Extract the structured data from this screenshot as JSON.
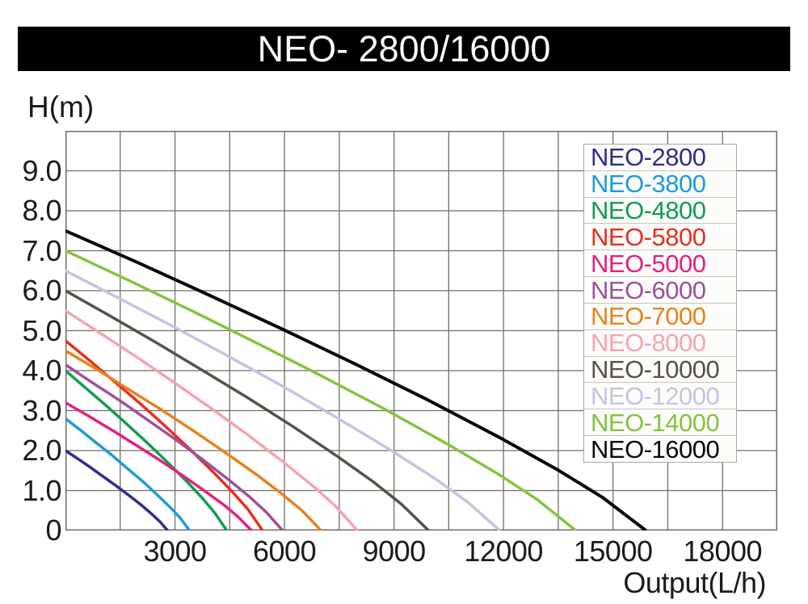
{
  "title": "NEO- 2800/16000",
  "y_axis_title": "H(m)",
  "x_axis_title": "Output(L/h)",
  "colors": {
    "title_bar_bg": "#000000",
    "title_text": "#ffffff",
    "grid": "#6f6f66",
    "tick_text": "#1b1b1b",
    "legend_bg": "#fcfcfa",
    "legend_border": "#a9a9a1"
  },
  "legend": {
    "position": "upper right",
    "items": [
      "NEO-2800",
      "NEO-3800",
      "NEO-4800",
      "NEO-5800",
      "NEO-5000",
      "NEO-6000",
      "NEO-7000",
      "NEO-8000",
      "NEO-10000",
      "NEO-12000",
      "NEO-14000",
      "NEO-16000"
    ]
  },
  "chart_data": {
    "type": "line",
    "title": "NEO- 2800/16000",
    "xlabel": "Output(L/h)",
    "ylabel": "H(m)",
    "grid": true,
    "legend_position": "upper right",
    "x_axis": {
      "min": 0,
      "max": 19500,
      "grid_step": 1500,
      "tick_step": 3000,
      "tick_values": [
        3000,
        6000,
        9000,
        12000,
        15000,
        18000
      ],
      "tick_labels": [
        "3000",
        "6000",
        "9000",
        "12000",
        "15000",
        "18000"
      ]
    },
    "y_axis": {
      "min": 0,
      "max": 10,
      "grid_step": 1,
      "tick_values": [
        0,
        1,
        2,
        3,
        4,
        5,
        6,
        7,
        8,
        9
      ],
      "tick_labels": [
        "0",
        "1.0",
        "2.0",
        "3.0",
        "4.0",
        "5.0",
        "6.0",
        "7.0",
        "8.0",
        "9.0"
      ]
    },
    "series": [
      {
        "name": "NEO-2800",
        "color": "#2f2f8c",
        "max_head_m": 2.0,
        "max_flow_lh": 2800,
        "points": [
          [
            0,
            2.0
          ],
          [
            350,
            1.79
          ],
          [
            700,
            1.57
          ],
          [
            1050,
            1.34
          ],
          [
            1400,
            1.11
          ],
          [
            1750,
            0.87
          ],
          [
            2100,
            0.62
          ],
          [
            2380,
            0.4
          ],
          [
            2590,
            0.22
          ],
          [
            2800,
            0
          ]
        ]
      },
      {
        "name": "NEO-3800",
        "color": "#219bd8",
        "max_head_m": 2.8,
        "max_flow_lh": 3400,
        "points": [
          [
            0,
            2.8
          ],
          [
            430,
            2.5
          ],
          [
            850,
            2.19
          ],
          [
            1280,
            1.88
          ],
          [
            1700,
            1.55
          ],
          [
            2130,
            1.22
          ],
          [
            2550,
            0.86
          ],
          [
            2890,
            0.56
          ],
          [
            3150,
            0.31
          ],
          [
            3400,
            0
          ]
        ]
      },
      {
        "name": "NEO-4800",
        "color": "#119e4f",
        "max_head_m": 4.0,
        "max_flow_lh": 4420,
        "points": [
          [
            0,
            4.0
          ],
          [
            550,
            3.57
          ],
          [
            1110,
            3.13
          ],
          [
            1660,
            2.68
          ],
          [
            2210,
            2.22
          ],
          [
            2760,
            1.74
          ],
          [
            3320,
            1.23
          ],
          [
            3760,
            0.8
          ],
          [
            4090,
            0.44
          ],
          [
            4420,
            0
          ]
        ]
      },
      {
        "name": "NEO-5800",
        "color": "#e6301f",
        "max_head_m": 4.75,
        "max_flow_lh": 5400,
        "points": [
          [
            0,
            4.75
          ],
          [
            680,
            4.24
          ],
          [
            1350,
            3.72
          ],
          [
            2030,
            3.19
          ],
          [
            2700,
            2.64
          ],
          [
            3380,
            2.06
          ],
          [
            4050,
            1.46
          ],
          [
            4590,
            0.95
          ],
          [
            5000,
            0.53
          ],
          [
            5400,
            0
          ]
        ]
      },
      {
        "name": "NEO-5000",
        "color": "#e4217e",
        "max_head_m": 3.2,
        "max_flow_lh": 5100,
        "points": [
          [
            0,
            3.2
          ],
          [
            640,
            2.86
          ],
          [
            1280,
            2.51
          ],
          [
            1910,
            2.15
          ],
          [
            2550,
            1.78
          ],
          [
            3190,
            1.39
          ],
          [
            3830,
            0.98
          ],
          [
            4340,
            0.64
          ],
          [
            4720,
            0.35
          ],
          [
            5100,
            0
          ]
        ]
      },
      {
        "name": "NEO-6000",
        "color": "#9e519a",
        "max_head_m": 4.15,
        "max_flow_lh": 5950,
        "points": [
          [
            0,
            4.15
          ],
          [
            740,
            3.7
          ],
          [
            1490,
            3.25
          ],
          [
            2230,
            2.78
          ],
          [
            2980,
            2.3
          ],
          [
            3720,
            1.8
          ],
          [
            4460,
            1.28
          ],
          [
            5060,
            0.83
          ],
          [
            5500,
            0.46
          ],
          [
            5950,
            0
          ]
        ]
      },
      {
        "name": "NEO-7000",
        "color": "#e8821e",
        "max_head_m": 4.5,
        "max_flow_lh": 7000,
        "points": [
          [
            0,
            4.5
          ],
          [
            880,
            4.02
          ],
          [
            1750,
            3.52
          ],
          [
            2630,
            3.02
          ],
          [
            3500,
            2.5
          ],
          [
            4380,
            1.95
          ],
          [
            5250,
            1.39
          ],
          [
            5950,
            0.9
          ],
          [
            6480,
            0.5
          ],
          [
            7000,
            0
          ]
        ]
      },
      {
        "name": "NEO-8000",
        "color": "#f5a4ad",
        "max_head_m": 5.5,
        "max_flow_lh": 8000,
        "points": [
          [
            0,
            5.5
          ],
          [
            1000,
            4.91
          ],
          [
            2000,
            4.31
          ],
          [
            3000,
            3.69
          ],
          [
            4000,
            3.05
          ],
          [
            5000,
            2.39
          ],
          [
            6000,
            1.69
          ],
          [
            6800,
            1.1
          ],
          [
            7400,
            0.61
          ],
          [
            8000,
            0
          ]
        ]
      },
      {
        "name": "NEO-10000",
        "color": "#595049",
        "max_head_m": 6.0,
        "max_flow_lh": 9950,
        "points": [
          [
            0,
            6.0
          ],
          [
            1240,
            5.36
          ],
          [
            2490,
            4.7
          ],
          [
            3730,
            4.02
          ],
          [
            4980,
            3.33
          ],
          [
            6220,
            2.61
          ],
          [
            7460,
            1.85
          ],
          [
            8460,
            1.2
          ],
          [
            9200,
            0.66
          ],
          [
            9950,
            0
          ]
        ]
      },
      {
        "name": "NEO-12000",
        "color": "#c5c4e2",
        "max_head_m": 6.5,
        "max_flow_lh": 11900,
        "points": [
          [
            0,
            6.5
          ],
          [
            1490,
            5.8
          ],
          [
            2980,
            5.09
          ],
          [
            4460,
            4.36
          ],
          [
            5950,
            3.61
          ],
          [
            7440,
            2.82
          ],
          [
            8930,
            2.0
          ],
          [
            10120,
            1.3
          ],
          [
            11010,
            0.72
          ],
          [
            11900,
            0
          ]
        ]
      },
      {
        "name": "NEO-14000",
        "color": "#85c43f",
        "max_head_m": 7.0,
        "max_flow_lh": 13980,
        "points": [
          [
            0,
            7.0
          ],
          [
            1750,
            6.25
          ],
          [
            3500,
            5.48
          ],
          [
            5240,
            4.69
          ],
          [
            6990,
            3.88
          ],
          [
            8740,
            3.04
          ],
          [
            10490,
            2.15
          ],
          [
            11880,
            1.4
          ],
          [
            12930,
            0.77
          ],
          [
            13980,
            0
          ]
        ]
      },
      {
        "name": "NEO-16000",
        "color": "#0a0a0a",
        "max_head_m": 7.5,
        "max_flow_lh": 15900,
        "points": [
          [
            0,
            7.5
          ],
          [
            1990,
            6.7
          ],
          [
            3980,
            5.87
          ],
          [
            5960,
            5.03
          ],
          [
            7950,
            4.16
          ],
          [
            9940,
            3.26
          ],
          [
            11930,
            2.31
          ],
          [
            13520,
            1.5
          ],
          [
            14710,
            0.83
          ],
          [
            15900,
            0
          ]
        ]
      }
    ]
  }
}
